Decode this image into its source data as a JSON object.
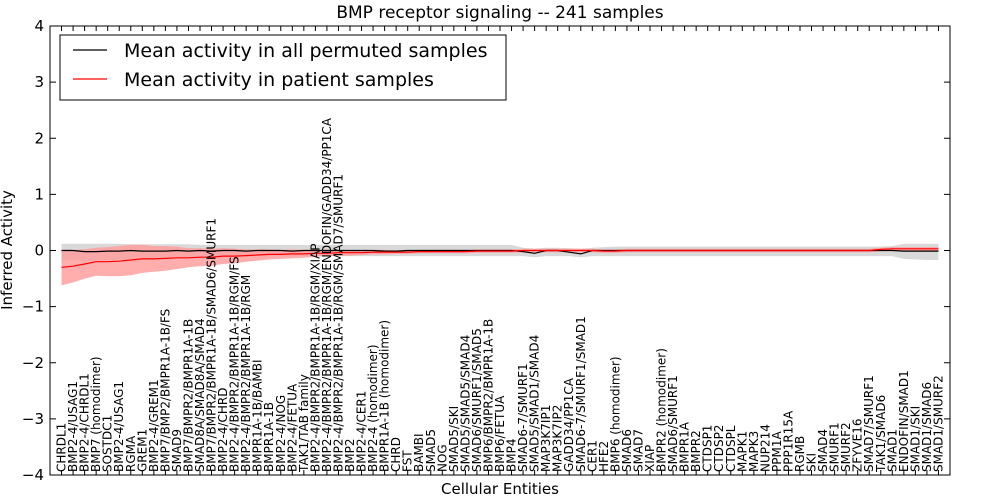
{
  "chart_data": {
    "type": "line",
    "title": "BMP receptor signaling -- 241 samples",
    "xlabel": "Cellular Entities",
    "ylabel": "Inferred Activity",
    "ylim": [
      -4,
      4
    ],
    "yticks": [
      -4,
      -3,
      -2,
      -1,
      0,
      1,
      2,
      3,
      4
    ],
    "grid": false,
    "legend_position": "top-left",
    "categories": [
      "CHRDL1",
      "BMP2-4/USAG1",
      "BMP2-4/CHRDL1",
      "BMP7 (homodimer)",
      "SOSTDC1",
      "BMP2-4/USAG1",
      "RGMA",
      "GREM1",
      "BMP2-4/GREM1",
      "BMP7/BMP2/BMPR1A-1B/FS",
      "SMAD9",
      "BMP7/BMPR2/BMPR1A-1B",
      "SMAD8A/SMAD8A/SMAD4",
      "BMP7/BMPR2/BMPR1A-1B/SMAD6/SMURF1",
      "BMP2-4/CHRD",
      "BMP2-4/BMPR2/BMPR1A-1B/RGM/FS",
      "BMP2-4/BMPR2/BMPR1A-1B/RGM",
      "BMPR1A-1B/BAMBI",
      "BMPR1A-1B",
      "BMP2-4/NOG",
      "BMP2-4/FETUA",
      "TAK1/TAB family",
      "BMP2-4/BMPR2/BMPR1A-1B/RGM/XIAP",
      "BMP2-4/BMPR2/BMPR1A-1B/RGM/ENDOFIN/GADD34/PP1CA",
      "BMP2-4/BMPR2/BMPR1A-1B/RGM/SMAD7/SMURF1",
      "BMP2",
      "BMP2-4/CER1",
      "BMP2-4 (homodimer)",
      "BMPR1A-1B (homodimer)",
      "CHRD",
      "FST",
      "BAMBI",
      "SMAD5",
      "NOG",
      "SMAD5/SKI",
      "SMAD5/SMAD5/SMAD4",
      "SMAD6/SMURF1/SMAD5",
      "BMP6/BMPR2/BMPR1A-1B",
      "BMP6/FETUA",
      "BMP4",
      "SMAD6-7/SMURF1",
      "SMAD5/SMAD1/SMAD4",
      "MAP3K7IP1",
      "MAP3K7IP2",
      "GADD34/PP1CA",
      "SMAD6-7/SMURF1/SMAD1",
      "CER1",
      "HFE2",
      "BMP6 (homodimer)",
      "SMAD6",
      "SMAD7",
      "XIAP",
      "BMPR2 (homodimer)",
      "SMAD6/SMURF1",
      "BMPR1A",
      "BMPR2",
      "CTDSP1",
      "CTDSP2",
      "CTDSPL",
      "MAPK1",
      "MAPK3",
      "NUP214",
      "PPM1A",
      "PPP1R15A",
      "RGMB",
      "SKI",
      "SMAD4",
      "SMURF1",
      "SMURF2",
      "ZFYVE16",
      "SMAD7/SMURF1",
      "TAK1/SMAD6",
      "SMAD1",
      "ENDOFIN/SMAD1",
      "SMAD1/SKI",
      "SMAD1/SMAD6",
      "SMAD1/SMURF2"
    ],
    "series": [
      {
        "name": "Mean activity in all permuted samples",
        "color": "#000000",
        "band_color": "#cccccc",
        "values": [
          0.0,
          0.0,
          -0.02,
          -0.02,
          -0.01,
          -0.01,
          0.0,
          -0.01,
          -0.01,
          -0.01,
          0.0,
          -0.01,
          0.0,
          -0.01,
          0.0,
          0.0,
          -0.01,
          0.0,
          0.0,
          0.0,
          -0.01,
          0.0,
          0.0,
          0.0,
          0.0,
          0.0,
          0.0,
          0.0,
          -0.01,
          -0.01,
          0.0,
          0.0,
          0.0,
          0.0,
          0.0,
          0.0,
          0.0,
          0.0,
          0.0,
          0.0,
          -0.02,
          -0.05,
          0.0,
          0.0,
          -0.03,
          -0.06,
          0.0,
          0.0,
          0.0,
          0.0,
          0.0,
          0.0,
          0.0,
          0.0,
          0.0,
          0.0,
          0.0,
          0.0,
          0.0,
          0.0,
          0.0,
          0.0,
          0.0,
          0.0,
          0.0,
          0.0,
          0.0,
          0.0,
          0.0,
          0.0,
          0.0,
          0.0,
          0.0,
          -0.01,
          -0.01,
          -0.01,
          -0.01
        ],
        "lower": [
          -0.18,
          -0.17,
          -0.18,
          -0.18,
          -0.17,
          -0.16,
          -0.15,
          -0.15,
          -0.14,
          -0.13,
          -0.12,
          -0.12,
          -0.11,
          -0.11,
          -0.1,
          -0.1,
          -0.1,
          -0.1,
          -0.1,
          -0.1,
          -0.1,
          -0.1,
          -0.1,
          -0.1,
          -0.1,
          -0.1,
          -0.1,
          -0.1,
          -0.1,
          -0.1,
          -0.1,
          -0.1,
          -0.1,
          -0.1,
          -0.1,
          -0.1,
          -0.1,
          -0.1,
          -0.1,
          -0.1,
          -0.1,
          -0.12,
          -0.1,
          -0.1,
          -0.1,
          -0.12,
          -0.1,
          -0.1,
          -0.1,
          -0.1,
          -0.1,
          -0.1,
          -0.1,
          -0.1,
          -0.1,
          -0.1,
          -0.1,
          -0.1,
          -0.1,
          -0.1,
          -0.1,
          -0.1,
          -0.1,
          -0.1,
          -0.1,
          -0.1,
          -0.1,
          -0.1,
          -0.1,
          -0.1,
          -0.1,
          -0.1,
          -0.1,
          -0.15,
          -0.16,
          -0.17,
          -0.17
        ],
        "upper": [
          0.12,
          0.12,
          0.12,
          0.12,
          0.12,
          0.12,
          0.11,
          0.11,
          0.11,
          0.11,
          0.11,
          0.11,
          0.1,
          0.1,
          0.1,
          0.1,
          0.1,
          0.1,
          0.1,
          0.1,
          0.1,
          0.1,
          0.1,
          0.1,
          0.1,
          0.1,
          0.1,
          0.1,
          0.1,
          0.1,
          0.1,
          0.1,
          0.1,
          0.1,
          0.1,
          0.1,
          0.1,
          0.1,
          0.1,
          0.1,
          0.05,
          0.03,
          0.05,
          0.05,
          0.04,
          0.03,
          0.05,
          0.06,
          0.07,
          0.07,
          0.07,
          0.07,
          0.07,
          0.07,
          0.07,
          0.07,
          0.07,
          0.07,
          0.07,
          0.07,
          0.07,
          0.07,
          0.07,
          0.07,
          0.07,
          0.07,
          0.07,
          0.07,
          0.07,
          0.07,
          0.07,
          0.07,
          0.08,
          0.12,
          0.12,
          0.12,
          0.12
        ]
      },
      {
        "name": "Mean activity in patient samples",
        "color": "#ff0000",
        "band_color": "#ff9999",
        "values": [
          -0.3,
          -0.28,
          -0.24,
          -0.2,
          -0.2,
          -0.19,
          -0.17,
          -0.15,
          -0.15,
          -0.14,
          -0.13,
          -0.13,
          -0.12,
          -0.12,
          -0.1,
          -0.1,
          -0.09,
          -0.08,
          -0.07,
          -0.07,
          -0.06,
          -0.06,
          -0.05,
          -0.05,
          -0.04,
          -0.04,
          -0.04,
          -0.03,
          -0.03,
          -0.03,
          -0.03,
          -0.02,
          -0.02,
          -0.02,
          -0.02,
          -0.02,
          -0.01,
          -0.01,
          -0.01,
          -0.01,
          0.0,
          0.0,
          0.0,
          0.0,
          0.0,
          0.0,
          0.0,
          -0.01,
          -0.01,
          0.0,
          0.0,
          0.0,
          0.0,
          0.0,
          0.0,
          0.0,
          0.0,
          0.0,
          0.0,
          0.0,
          0.0,
          0.0,
          0.0,
          0.0,
          0.0,
          0.0,
          0.0,
          0.0,
          0.0,
          0.0,
          0.0,
          0.02,
          0.03,
          0.03,
          0.03,
          0.03,
          0.03
        ],
        "lower": [
          -0.62,
          -0.57,
          -0.5,
          -0.45,
          -0.46,
          -0.46,
          -0.44,
          -0.4,
          -0.38,
          -0.36,
          -0.33,
          -0.3,
          -0.28,
          -0.27,
          -0.24,
          -0.23,
          -0.2,
          -0.18,
          -0.16,
          -0.15,
          -0.14,
          -0.13,
          -0.11,
          -0.1,
          -0.09,
          -0.09,
          -0.08,
          -0.07,
          -0.07,
          -0.06,
          -0.06,
          -0.05,
          -0.05,
          -0.05,
          -0.05,
          -0.05,
          -0.04,
          -0.04,
          -0.04,
          -0.04,
          -0.03,
          -0.03,
          -0.03,
          -0.03,
          -0.03,
          -0.03,
          -0.03,
          -0.04,
          -0.04,
          -0.03,
          -0.03,
          -0.03,
          -0.03,
          -0.03,
          -0.03,
          -0.03,
          -0.03,
          -0.03,
          -0.03,
          -0.03,
          -0.03,
          -0.03,
          -0.03,
          -0.03,
          -0.03,
          -0.03,
          -0.03,
          -0.03,
          -0.03,
          -0.03,
          -0.03,
          -0.01,
          0.0,
          0.0,
          0.0,
          0.0,
          0.0
        ],
        "upper": [
          0.02,
          0.01,
          0.02,
          0.05,
          0.06,
          0.08,
          0.1,
          0.1,
          0.08,
          0.08,
          0.07,
          0.04,
          0.04,
          0.03,
          0.04,
          0.03,
          0.02,
          0.02,
          0.02,
          0.01,
          0.02,
          0.01,
          0.01,
          0.01,
          0.01,
          0.0,
          0.0,
          0.01,
          0.01,
          0.0,
          0.0,
          0.01,
          0.01,
          0.01,
          0.01,
          0.01,
          0.02,
          0.02,
          0.02,
          0.02,
          0.03,
          0.03,
          0.03,
          0.03,
          0.03,
          0.03,
          0.03,
          0.02,
          0.02,
          0.03,
          0.03,
          0.03,
          0.03,
          0.03,
          0.03,
          0.03,
          0.03,
          0.03,
          0.03,
          0.03,
          0.03,
          0.03,
          0.03,
          0.03,
          0.03,
          0.03,
          0.03,
          0.03,
          0.03,
          0.03,
          0.03,
          0.05,
          0.06,
          0.06,
          0.06,
          0.06,
          0.06
        ]
      }
    ]
  }
}
